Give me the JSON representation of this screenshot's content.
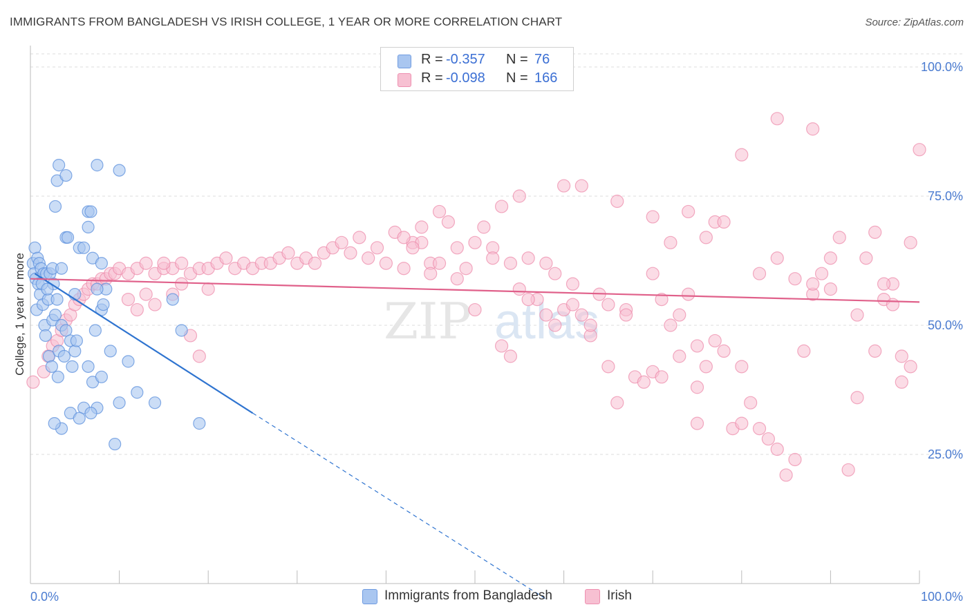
{
  "title": "IMMIGRANTS FROM BANGLADESH VS IRISH COLLEGE, 1 YEAR OR MORE CORRELATION CHART",
  "source": "Source: ZipAtlas.com",
  "watermark": "ZIPatlas",
  "legend": {
    "rows": [
      {
        "r_label": "R =",
        "r_value": "-0.357",
        "n_label": "N =",
        "n_value": "76",
        "color": "#a9c6f0",
        "border": "#6f9be0"
      },
      {
        "r_label": "R =",
        "r_value": "-0.098",
        "n_label": "N =",
        "n_value": "166",
        "color": "#f7c0d2",
        "border": "#ee8fb0"
      }
    ]
  },
  "bottom_legend": {
    "series1": "Immigrants from Bangladesh",
    "series2": "Irish"
  },
  "chart_data": {
    "type": "scatter",
    "title": "IMMIGRANTS FROM BANGLADESH VS IRISH COLLEGE, 1 YEAR OR MORE CORRELATION CHART",
    "xlabel": "",
    "ylabel": "College, 1 year or more",
    "xlim": [
      0,
      100
    ],
    "ylim": [
      0,
      100
    ],
    "x_tick_labels": [
      "0.0%",
      "100.0%"
    ],
    "y_tick_labels": [
      "25.0%",
      "50.0%",
      "75.0%",
      "100.0%"
    ],
    "y_ticks": [
      25,
      50,
      75,
      100
    ],
    "colors": {
      "bangladesh_fill": "#a9c6f0",
      "bangladesh_stroke": "#5b8fdc",
      "irish_fill": "#f7c0d2",
      "irish_stroke": "#ec87a8",
      "bangladesh_line": "#2f74d0",
      "irish_line": "#e0608a"
    },
    "series": [
      {
        "name": "Immigrants from Bangladesh",
        "trend": {
          "x0": 0.5,
          "y0": 60,
          "x1": 25,
          "y1": 33,
          "dash_to_x": 58,
          "dash_to_y": -3
        },
        "points": [
          [
            0.3,
            62
          ],
          [
            0.5,
            65
          ],
          [
            0.4,
            60
          ],
          [
            0.8,
            63
          ],
          [
            1.0,
            62
          ],
          [
            0.6,
            59
          ],
          [
            1.2,
            61
          ],
          [
            0.9,
            58
          ],
          [
            1.5,
            60
          ],
          [
            1.8,
            60
          ],
          [
            1.1,
            56
          ],
          [
            0.7,
            53
          ],
          [
            1.4,
            54
          ],
          [
            2.0,
            55
          ],
          [
            2.2,
            60
          ],
          [
            1.6,
            50
          ],
          [
            2.5,
            51
          ],
          [
            3.0,
            55
          ],
          [
            2.8,
            52
          ],
          [
            3.5,
            50
          ],
          [
            1.7,
            48
          ],
          [
            2.1,
            44
          ],
          [
            2.4,
            42
          ],
          [
            3.2,
            45
          ],
          [
            3.8,
            44
          ],
          [
            4.0,
            49
          ],
          [
            4.5,
            47
          ],
          [
            5.0,
            45
          ],
          [
            3.1,
            40
          ],
          [
            4.7,
            42
          ],
          [
            6.5,
            42
          ],
          [
            7.0,
            39
          ],
          [
            7.3,
            49
          ],
          [
            8.0,
            40
          ],
          [
            9.0,
            45
          ],
          [
            11,
            43
          ],
          [
            6.0,
            34
          ],
          [
            7.5,
            34
          ],
          [
            9.5,
            27
          ],
          [
            3.5,
            30
          ],
          [
            4.5,
            33
          ],
          [
            5.5,
            32
          ],
          [
            6.8,
            33
          ],
          [
            2.7,
            31
          ],
          [
            10,
            35
          ],
          [
            12,
            37
          ],
          [
            14,
            35
          ],
          [
            16,
            55
          ],
          [
            19,
            31
          ],
          [
            17,
            49
          ],
          [
            3.0,
            78
          ],
          [
            3.2,
            81
          ],
          [
            4.0,
            79
          ],
          [
            7.5,
            81
          ],
          [
            10,
            80
          ],
          [
            2.8,
            73
          ],
          [
            6.5,
            72
          ],
          [
            6.8,
            72
          ],
          [
            6.5,
            69
          ],
          [
            4.0,
            67
          ],
          [
            4.2,
            67
          ],
          [
            5.5,
            65
          ],
          [
            6.0,
            65
          ],
          [
            7.0,
            63
          ],
          [
            8.0,
            62
          ],
          [
            2.5,
            61
          ],
          [
            3.5,
            61
          ],
          [
            1.3,
            58
          ],
          [
            5.0,
            56
          ],
          [
            8.5,
            57
          ],
          [
            7.5,
            57
          ],
          [
            8.0,
            53
          ],
          [
            8.2,
            54
          ],
          [
            2.6,
            58
          ],
          [
            1.9,
            57
          ],
          [
            5.2,
            47
          ]
        ]
      },
      {
        "name": "Irish",
        "trend": {
          "x0": 0,
          "y0": 59,
          "x1": 100,
          "y1": 54.5
        },
        "points": [
          [
            0.3,
            39
          ],
          [
            1.5,
            41
          ],
          [
            2.0,
            44
          ],
          [
            2.5,
            46
          ],
          [
            3.0,
            47
          ],
          [
            3.5,
            49
          ],
          [
            4.0,
            51
          ],
          [
            4.5,
            52
          ],
          [
            5.0,
            54
          ],
          [
            5.5,
            55
          ],
          [
            6.0,
            56
          ],
          [
            6.5,
            57
          ],
          [
            7.0,
            58
          ],
          [
            7.5,
            58
          ],
          [
            8.0,
            59
          ],
          [
            8.5,
            59
          ],
          [
            9.0,
            60
          ],
          [
            9.5,
            60
          ],
          [
            10,
            61
          ],
          [
            11,
            60
          ],
          [
            12,
            61
          ],
          [
            13,
            62
          ],
          [
            14,
            60
          ],
          [
            15,
            61
          ],
          [
            16,
            61
          ],
          [
            17,
            62
          ],
          [
            18,
            60
          ],
          [
            19,
            61
          ],
          [
            20,
            61
          ],
          [
            21,
            62
          ],
          [
            22,
            63
          ],
          [
            23,
            61
          ],
          [
            24,
            62
          ],
          [
            25,
            61
          ],
          [
            26,
            62
          ],
          [
            27,
            62
          ],
          [
            28,
            63
          ],
          [
            29,
            64
          ],
          [
            30,
            62
          ],
          [
            31,
            63
          ],
          [
            32,
            62
          ],
          [
            33,
            64
          ],
          [
            34,
            65
          ],
          [
            35,
            66
          ],
          [
            36,
            64
          ],
          [
            37,
            67
          ],
          [
            38,
            63
          ],
          [
            39,
            65
          ],
          [
            40,
            62
          ],
          [
            41,
            68
          ],
          [
            42,
            61
          ],
          [
            43,
            66
          ],
          [
            44,
            69
          ],
          [
            45,
            62
          ],
          [
            46,
            62
          ],
          [
            47,
            70
          ],
          [
            48,
            59
          ],
          [
            49,
            61
          ],
          [
            50,
            66
          ],
          [
            51,
            69
          ],
          [
            52,
            65
          ],
          [
            53,
            73
          ],
          [
            54,
            62
          ],
          [
            55,
            75
          ],
          [
            56,
            63
          ],
          [
            57,
            55
          ],
          [
            58,
            62
          ],
          [
            59,
            50
          ],
          [
            60,
            53
          ],
          [
            61,
            54
          ],
          [
            62,
            52
          ],
          [
            63,
            48
          ],
          [
            64,
            56
          ],
          [
            65,
            42
          ],
          [
            66,
            35
          ],
          [
            67,
            53
          ],
          [
            68,
            40
          ],
          [
            69,
            39
          ],
          [
            70,
            41
          ],
          [
            71,
            55
          ],
          [
            72,
            50
          ],
          [
            73,
            52
          ],
          [
            74,
            56
          ],
          [
            75,
            31
          ],
          [
            76,
            42
          ],
          [
            77,
            47
          ],
          [
            78,
            45
          ],
          [
            79,
            30
          ],
          [
            80,
            42
          ],
          [
            81,
            35
          ],
          [
            82,
            30
          ],
          [
            83,
            28
          ],
          [
            84,
            26
          ],
          [
            85,
            21
          ],
          [
            86,
            24
          ],
          [
            87,
            45
          ],
          [
            88,
            56
          ],
          [
            89,
            60
          ],
          [
            90,
            63
          ],
          [
            91,
            67
          ],
          [
            92,
            22
          ],
          [
            93,
            52
          ],
          [
            94,
            63
          ],
          [
            95,
            68
          ],
          [
            96,
            55
          ],
          [
            97,
            58
          ],
          [
            98,
            44
          ],
          [
            99,
            42
          ],
          [
            53,
            46
          ],
          [
            54,
            44
          ],
          [
            70,
            60
          ],
          [
            72,
            66
          ],
          [
            75,
            46
          ],
          [
            77,
            70
          ],
          [
            80,
            31
          ],
          [
            82,
            60
          ],
          [
            84,
            63
          ],
          [
            86,
            59
          ],
          [
            88,
            58
          ],
          [
            90,
            57
          ],
          [
            15,
            62
          ],
          [
            16,
            56
          ],
          [
            17,
            58
          ],
          [
            18,
            48
          ],
          [
            19,
            44
          ],
          [
            20,
            57
          ],
          [
            14,
            54
          ],
          [
            12,
            53
          ],
          [
            13,
            56
          ],
          [
            11,
            55
          ],
          [
            60,
            77
          ],
          [
            62,
            77
          ],
          [
            66,
            74
          ],
          [
            70,
            71
          ],
          [
            74,
            72
          ],
          [
            78,
            70
          ],
          [
            80,
            83
          ],
          [
            84,
            90
          ],
          [
            88,
            88
          ],
          [
            95,
            45
          ],
          [
            98,
            39
          ],
          [
            100,
            84
          ],
          [
            93,
            36
          ],
          [
            96,
            58
          ],
          [
            97,
            54
          ],
          [
            99,
            66
          ],
          [
            76,
            67
          ],
          [
            75,
            38
          ],
          [
            73,
            44
          ],
          [
            71,
            40
          ],
          [
            67,
            52
          ],
          [
            65,
            54
          ],
          [
            63,
            50
          ],
          [
            61,
            58
          ],
          [
            59,
            60
          ],
          [
            58,
            52
          ],
          [
            56,
            55
          ],
          [
            55,
            57
          ],
          [
            50,
            53
          ],
          [
            52,
            63
          ],
          [
            48,
            65
          ],
          [
            46,
            72
          ],
          [
            45,
            60
          ],
          [
            44,
            66
          ],
          [
            43,
            65
          ],
          [
            42,
            67
          ]
        ]
      }
    ]
  }
}
